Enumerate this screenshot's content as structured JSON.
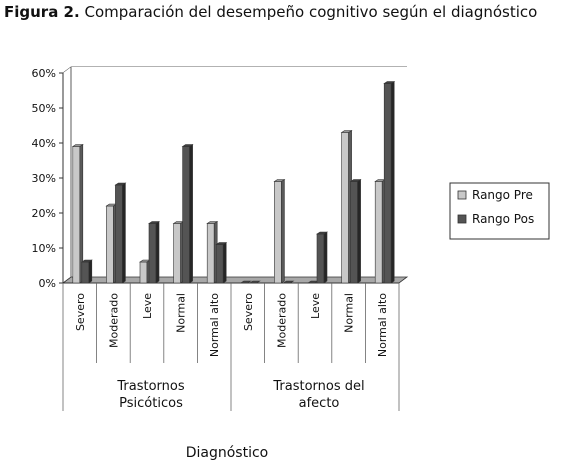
{
  "caption": {
    "prefix": "Figura 2.",
    "text": "Comparación del desempeño cognitivo según el diagnóstico"
  },
  "chart_data": {
    "type": "bar",
    "xlabel": "Diagnóstico",
    "ylim": [
      0,
      60
    ],
    "ytick_labels": [
      "0%",
      "10%",
      "20%",
      "30%",
      "40%",
      "50%",
      "60%"
    ],
    "groups": [
      {
        "label_lines": [
          "Trastornos",
          "Psicóticos"
        ],
        "categories": [
          "Severo",
          "Moderado",
          "Leve",
          "Normal",
          "Normal alto"
        ]
      },
      {
        "label_lines": [
          "Trastornos del",
          "afecto"
        ],
        "categories": [
          "Severo",
          "Moderado",
          "Leve",
          "Normal",
          "Normal alto"
        ]
      }
    ],
    "series": [
      {
        "name": "Rango Pre",
        "color": "#c8c8c8",
        "values": [
          39,
          22,
          6,
          17,
          17,
          0,
          29,
          0,
          43,
          29
        ]
      },
      {
        "name": "Rango Pos",
        "color": "#545454",
        "values": [
          6,
          28,
          17,
          39,
          11,
          0,
          0,
          14,
          29,
          57
        ]
      }
    ],
    "grid": true,
    "legend_position": "right"
  }
}
